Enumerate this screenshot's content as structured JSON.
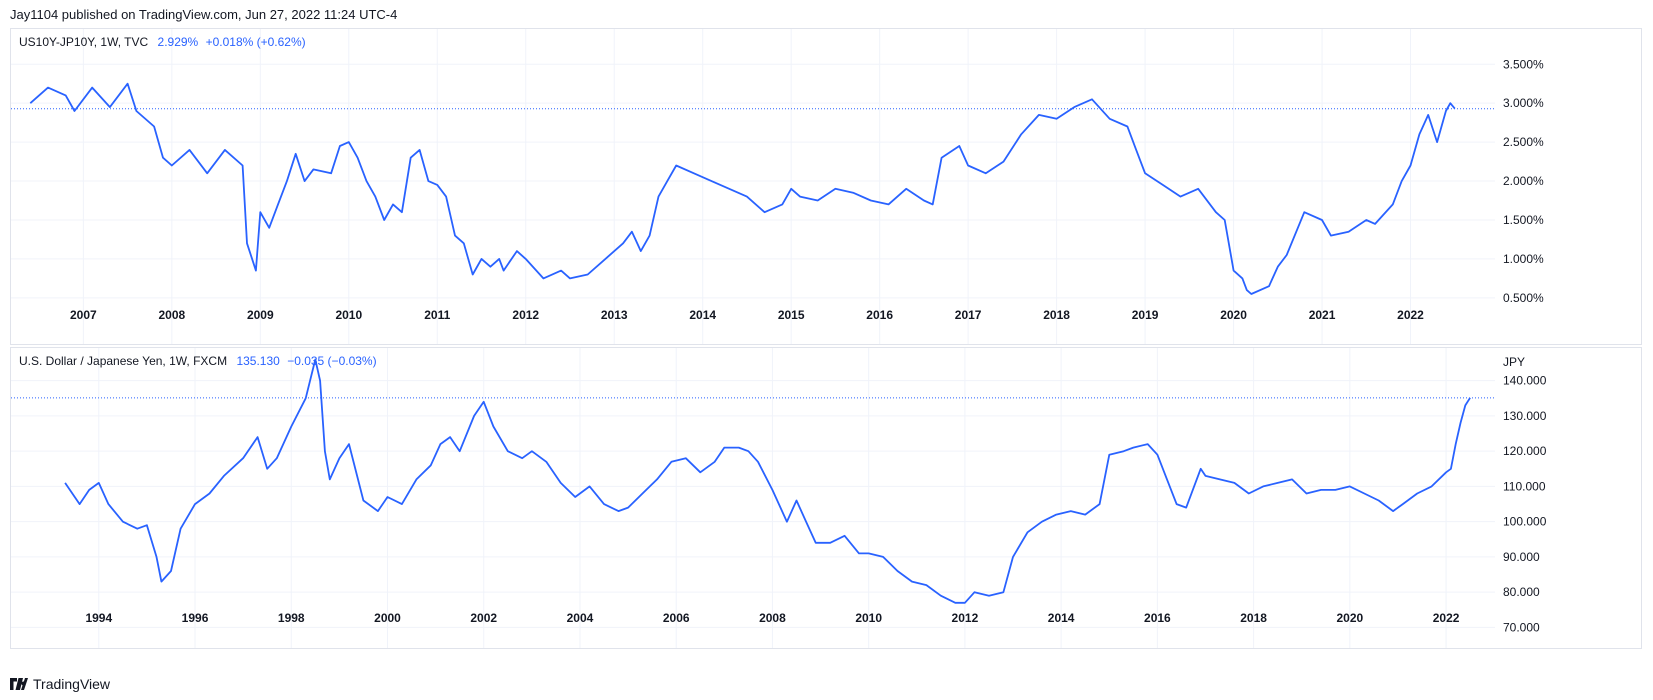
{
  "publisher_line": "Jay1104 published on TradingView.com, Jun 27, 2022 11:24 UTC-4",
  "footer": {
    "brand": "TradingView"
  },
  "colors": {
    "line": "#2962ff",
    "grid": "#f0f3fa",
    "text": "#131722",
    "border": "#e0e3eb"
  },
  "chart_data": [
    {
      "type": "line",
      "legend": {
        "symbol": "US10Y-JP10Y, 1W, TVC",
        "price": "2.929%",
        "change": "+0.018% (+0.62%)"
      },
      "unit_label": "",
      "x_ticks": [
        "2007",
        "2008",
        "2009",
        "2010",
        "2011",
        "2012",
        "2013",
        "2014",
        "2015",
        "2016",
        "2017",
        "2018",
        "2019",
        "2020",
        "2021",
        "2022"
      ],
      "y_ticks": [
        "3.500%",
        "3.000%",
        "2.500%",
        "2.000%",
        "1.500%",
        "1.000%",
        "0.500%"
      ],
      "y_tick_values": [
        3.5,
        3.0,
        2.5,
        2.0,
        1.5,
        1.0,
        0.5
      ],
      "xlim": [
        2006.25,
        2023.0
      ],
      "ylim": [
        0.1,
        3.85
      ],
      "last_value": 2.929,
      "grid": true,
      "series": [
        {
          "x": [
            2006.4,
            2006.6,
            2006.8,
            2006.9,
            2007.1,
            2007.3,
            2007.5,
            2007.6,
            2007.8,
            2007.9,
            2008.0,
            2008.2,
            2008.4,
            2008.6,
            2008.8,
            2008.85,
            2008.95,
            2009.0,
            2009.1,
            2009.2,
            2009.3,
            2009.4,
            2009.5,
            2009.6,
            2009.8,
            2009.9,
            2010.0,
            2010.1,
            2010.2,
            2010.3,
            2010.4,
            2010.5,
            2010.6,
            2010.7,
            2010.8,
            2010.9,
            2011.0,
            2011.1,
            2011.2,
            2011.3,
            2011.4,
            2011.5,
            2011.6,
            2011.7,
            2011.75,
            2011.9,
            2012.0,
            2012.2,
            2012.4,
            2012.5,
            2012.7,
            2012.9,
            2013.1,
            2013.2,
            2013.3,
            2013.4,
            2013.5,
            2013.6,
            2013.7,
            2013.9,
            2014.1,
            2014.3,
            2014.5,
            2014.7,
            2014.9,
            2015.0,
            2015.1,
            2015.3,
            2015.5,
            2015.7,
            2015.9,
            2016.1,
            2016.3,
            2016.5,
            2016.6,
            2016.7,
            2016.9,
            2017.0,
            2017.2,
            2017.4,
            2017.6,
            2017.8,
            2018.0,
            2018.2,
            2018.4,
            2018.6,
            2018.8,
            2018.9,
            2019.0,
            2019.2,
            2019.4,
            2019.6,
            2019.8,
            2019.9,
            2020.0,
            2020.1,
            2020.15,
            2020.2,
            2020.4,
            2020.5,
            2020.6,
            2020.8,
            2021.0,
            2021.1,
            2021.3,
            2021.5,
            2021.6,
            2021.8,
            2021.9,
            2022.0,
            2022.1,
            2022.2,
            2022.3,
            2022.4,
            2022.45,
            2022.5
          ],
          "y": [
            3.0,
            3.2,
            3.1,
            2.9,
            3.2,
            2.95,
            3.25,
            2.9,
            2.7,
            2.3,
            2.2,
            2.4,
            2.1,
            2.4,
            2.2,
            1.2,
            0.85,
            1.6,
            1.4,
            1.7,
            2.0,
            2.35,
            2.0,
            2.15,
            2.1,
            2.45,
            2.5,
            2.3,
            2.0,
            1.8,
            1.5,
            1.7,
            1.6,
            2.3,
            2.4,
            2.0,
            1.95,
            1.8,
            1.3,
            1.2,
            0.8,
            1.0,
            0.9,
            1.0,
            0.85,
            1.1,
            1.0,
            0.75,
            0.85,
            0.75,
            0.8,
            1.0,
            1.2,
            1.35,
            1.1,
            1.3,
            1.8,
            2.0,
            2.2,
            2.1,
            2.0,
            1.9,
            1.8,
            1.6,
            1.7,
            1.9,
            1.8,
            1.75,
            1.9,
            1.85,
            1.75,
            1.7,
            1.9,
            1.75,
            1.7,
            2.3,
            2.45,
            2.2,
            2.1,
            2.25,
            2.6,
            2.85,
            2.8,
            2.95,
            3.05,
            2.8,
            2.7,
            2.4,
            2.1,
            1.95,
            1.8,
            1.9,
            1.6,
            1.5,
            0.85,
            0.75,
            0.6,
            0.55,
            0.65,
            0.9,
            1.05,
            1.6,
            1.5,
            1.3,
            1.35,
            1.5,
            1.45,
            1.7,
            2.0,
            2.2,
            2.6,
            2.85,
            2.5,
            2.9,
            3.0,
            2.93
          ]
        }
      ]
    },
    {
      "type": "line",
      "legend": {
        "symbol": "U.S. Dollar / Japanese Yen, 1W, FXCM",
        "price": "135.130",
        "change": "−0.035 (−0.03%)"
      },
      "unit_label": "JPY",
      "x_ticks": [
        "1994",
        "1996",
        "1998",
        "2000",
        "2002",
        "2004",
        "2006",
        "2008",
        "2010",
        "2012",
        "2014",
        "2016",
        "2018",
        "2020",
        "2022"
      ],
      "y_ticks": [
        "140.000",
        "130.000",
        "120.000",
        "110.000",
        "100.000",
        "90.000",
        "80.000",
        "70.000"
      ],
      "y_tick_values": [
        140,
        130,
        120,
        110,
        100,
        90,
        80,
        70
      ],
      "xlim": [
        1992.3,
        2023.1
      ],
      "ylim": [
        67,
        147
      ],
      "last_value": 135.13,
      "grid": true,
      "series": [
        {
          "x": [
            1993.3,
            1993.6,
            1993.8,
            1994.0,
            1994.2,
            1994.5,
            1994.8,
            1995.0,
            1995.2,
            1995.3,
            1995.5,
            1995.7,
            1996.0,
            1996.3,
            1996.6,
            1997.0,
            1997.3,
            1997.5,
            1997.7,
            1998.0,
            1998.3,
            1998.5,
            1998.6,
            1998.7,
            1998.8,
            1999.0,
            1999.2,
            1999.5,
            1999.8,
            2000.0,
            2000.3,
            2000.6,
            2000.9,
            2001.1,
            2001.3,
            2001.5,
            2001.8,
            2002.0,
            2002.2,
            2002.5,
            2002.8,
            2003.0,
            2003.3,
            2003.6,
            2003.9,
            2004.2,
            2004.5,
            2004.8,
            2005.0,
            2005.3,
            2005.6,
            2005.9,
            2006.2,
            2006.5,
            2006.8,
            2007.0,
            2007.3,
            2007.5,
            2007.7,
            2008.0,
            2008.3,
            2008.5,
            2008.7,
            2008.9,
            2009.2,
            2009.5,
            2009.8,
            2010.0,
            2010.3,
            2010.6,
            2010.9,
            2011.2,
            2011.5,
            2011.8,
            2012.0,
            2012.2,
            2012.5,
            2012.8,
            2013.0,
            2013.3,
            2013.6,
            2013.9,
            2014.2,
            2014.5,
            2014.8,
            2015.0,
            2015.3,
            2015.5,
            2015.8,
            2016.0,
            2016.2,
            2016.4,
            2016.6,
            2016.9,
            2017.0,
            2017.3,
            2017.6,
            2017.9,
            2018.2,
            2018.5,
            2018.8,
            2019.1,
            2019.4,
            2019.7,
            2020.0,
            2020.3,
            2020.6,
            2020.9,
            2021.1,
            2021.4,
            2021.7,
            2022.0,
            2022.1,
            2022.2,
            2022.3,
            2022.4,
            2022.5
          ],
          "y": [
            111,
            105,
            109,
            111,
            105,
            100,
            98,
            99,
            90,
            83,
            86,
            98,
            105,
            108,
            113,
            118,
            124,
            115,
            118,
            127,
            135,
            146,
            140,
            120,
            112,
            118,
            122,
            106,
            103,
            107,
            105,
            112,
            116,
            122,
            124,
            120,
            130,
            134,
            127,
            120,
            118,
            120,
            117,
            111,
            107,
            110,
            105,
            103,
            104,
            108,
            112,
            117,
            118,
            114,
            117,
            121,
            121,
            120,
            117,
            109,
            100,
            106,
            100,
            94,
            94,
            96,
            91,
            91,
            90,
            86,
            83,
            82,
            79,
            77,
            77,
            80,
            79,
            80,
            90,
            97,
            100,
            102,
            103,
            102,
            105,
            119,
            120,
            121,
            122,
            119,
            112,
            105,
            104,
            115,
            113,
            112,
            111,
            108,
            110,
            111,
            112,
            108,
            109,
            109,
            110,
            108,
            106,
            103,
            105,
            108,
            110,
            114,
            115,
            122,
            128,
            133,
            135.13
          ]
        }
      ]
    }
  ]
}
